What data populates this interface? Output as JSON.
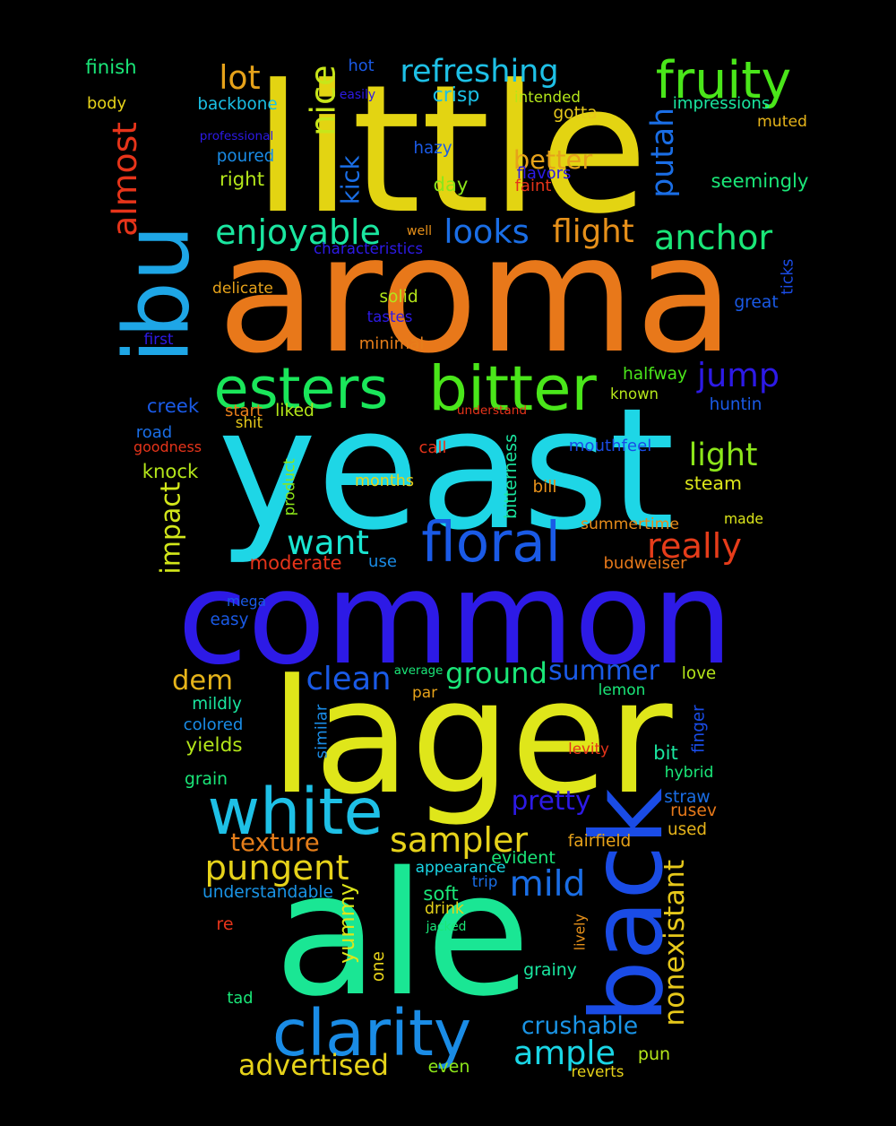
{
  "word_cloud": {
    "background": "#000000",
    "words": [
      {
        "text": "little",
        "color": "#e3d412"
      },
      {
        "text": "aroma",
        "color": "#e8781a"
      },
      {
        "text": "yeast",
        "color": "#1ed6e6"
      },
      {
        "text": "common",
        "color": "#2d1ae6"
      },
      {
        "text": "lager",
        "color": "#dfe61a"
      },
      {
        "text": "ale",
        "color": "#1ae694"
      },
      {
        "text": "ibu",
        "color": "#1ea6e6"
      },
      {
        "text": "back",
        "color": "#1a4ce6"
      },
      {
        "text": "esters",
        "color": "#1ae65a"
      },
      {
        "text": "bitter",
        "color": "#4ae61a"
      },
      {
        "text": "floral",
        "color": "#1a5ae6"
      },
      {
        "text": "white",
        "color": "#1ec0e6"
      },
      {
        "text": "clarity",
        "color": "#1a8ce6"
      },
      {
        "text": "fruity",
        "color": "#4ae61a"
      },
      {
        "text": "refreshing",
        "color": "#1ec0e6"
      },
      {
        "text": "lot",
        "color": "#e6a21a"
      },
      {
        "text": "nice",
        "color": "#c8e61a"
      },
      {
        "text": "almost",
        "color": "#e6341a"
      },
      {
        "text": "putah",
        "color": "#1a6ee6"
      },
      {
        "text": "enjoyable",
        "color": "#1ae6a0"
      },
      {
        "text": "looks",
        "color": "#1a6ee6"
      },
      {
        "text": "flight",
        "color": "#e6901a"
      },
      {
        "text": "anchor",
        "color": "#1ae678"
      },
      {
        "text": "kick",
        "color": "#1a6ee6"
      },
      {
        "text": "better",
        "color": "#e6a21a"
      },
      {
        "text": "right",
        "color": "#b4e61a"
      },
      {
        "text": "jump",
        "color": "#2d1ae6"
      },
      {
        "text": "light",
        "color": "#8ce61a"
      },
      {
        "text": "want",
        "color": "#1ae6d2"
      },
      {
        "text": "really",
        "color": "#e63c1a"
      },
      {
        "text": "impact",
        "color": "#d2e61a"
      },
      {
        "text": "dem",
        "color": "#e6b41a"
      },
      {
        "text": "clean",
        "color": "#1a5ae6"
      },
      {
        "text": "ground",
        "color": "#1ae678"
      },
      {
        "text": "summer",
        "color": "#1a5ae6"
      },
      {
        "text": "sampler",
        "color": "#e6d21a"
      },
      {
        "text": "pungent",
        "color": "#e6d21a"
      },
      {
        "text": "texture",
        "color": "#e67e1a"
      },
      {
        "text": "mild",
        "color": "#1a6ee6"
      },
      {
        "text": "pretty",
        "color": "#2d1ae6"
      },
      {
        "text": "nonexistant",
        "color": "#e6c81a"
      },
      {
        "text": "yummy",
        "color": "#dce61a"
      },
      {
        "text": "ample",
        "color": "#1ad6e6"
      },
      {
        "text": "crushable",
        "color": "#1a94e6"
      },
      {
        "text": "advertised",
        "color": "#e6d21a"
      },
      {
        "text": "finish",
        "color": "#1ae678"
      },
      {
        "text": "body",
        "color": "#e6d21a"
      },
      {
        "text": "backbone",
        "color": "#1ac0e6"
      },
      {
        "text": "professional",
        "color": "#2d1ae6"
      },
      {
        "text": "poured",
        "color": "#1a8ce6"
      },
      {
        "text": "hot",
        "color": "#1a5ae6"
      },
      {
        "text": "easily",
        "color": "#2d1ae6"
      },
      {
        "text": "crisp",
        "color": "#1ac0e6"
      },
      {
        "text": "intended",
        "color": "#b4e61a"
      },
      {
        "text": "gotta",
        "color": "#e6c81a"
      },
      {
        "text": "impressions",
        "color": "#1ae6a0"
      },
      {
        "text": "muted",
        "color": "#e6b41a"
      },
      {
        "text": "hazy",
        "color": "#1a5ae6"
      },
      {
        "text": "flavors",
        "color": "#2d1ae6"
      },
      {
        "text": "faint",
        "color": "#e6341a"
      },
      {
        "text": "day",
        "color": "#8ce61a"
      },
      {
        "text": "seemingly",
        "color": "#1ae678"
      },
      {
        "text": "well",
        "color": "#e6901a"
      },
      {
        "text": "characteristics",
        "color": "#2d1ae6"
      },
      {
        "text": "ticks",
        "color": "#1a4ce6"
      },
      {
        "text": "delicate",
        "color": "#e6a21a"
      },
      {
        "text": "solid",
        "color": "#b4e61a"
      },
      {
        "text": "tastes",
        "color": "#2d1ae6"
      },
      {
        "text": "great",
        "color": "#1a5ae6"
      },
      {
        "text": "first",
        "color": "#2d1ae6"
      },
      {
        "text": "minimal",
        "color": "#e67e1a"
      },
      {
        "text": "halfway",
        "color": "#4ae61a"
      },
      {
        "text": "known",
        "color": "#b4e61a"
      },
      {
        "text": "creek",
        "color": "#1a5ae6"
      },
      {
        "text": "start",
        "color": "#e67e1a"
      },
      {
        "text": "liked",
        "color": "#b4e61a"
      },
      {
        "text": "shit",
        "color": "#e6c81a"
      },
      {
        "text": "understand",
        "color": "#e6341a"
      },
      {
        "text": "huntin",
        "color": "#1a5ae6"
      },
      {
        "text": "road",
        "color": "#1a6ee6"
      },
      {
        "text": "goodness",
        "color": "#e6341a"
      },
      {
        "text": "call",
        "color": "#e6341a"
      },
      {
        "text": "mouthfeel",
        "color": "#1a4ce6"
      },
      {
        "text": "bitterness",
        "color": "#1ae6a0"
      },
      {
        "text": "knock",
        "color": "#b4e61a"
      },
      {
        "text": "product",
        "color": "#8ce61a"
      },
      {
        "text": "months",
        "color": "#e6d21a"
      },
      {
        "text": "bill",
        "color": "#e6901a"
      },
      {
        "text": "steam",
        "color": "#dce61a"
      },
      {
        "text": "summertime",
        "color": "#e68c1a"
      },
      {
        "text": "made",
        "color": "#dce61a"
      },
      {
        "text": "moderate",
        "color": "#e6341a"
      },
      {
        "text": "use",
        "color": "#1a8ce6"
      },
      {
        "text": "budweiser",
        "color": "#e6781a"
      },
      {
        "text": "mega",
        "color": "#1a5ae6"
      },
      {
        "text": "easy",
        "color": "#1a5ae6"
      },
      {
        "text": "average",
        "color": "#1ae678"
      },
      {
        "text": "par",
        "color": "#e6a21a"
      },
      {
        "text": "lemon",
        "color": "#1ae678"
      },
      {
        "text": "love",
        "color": "#b4e61a"
      },
      {
        "text": "mildly",
        "color": "#1ae6a0"
      },
      {
        "text": "colored",
        "color": "#1a8ce6"
      },
      {
        "text": "similar",
        "color": "#1a8ce6"
      },
      {
        "text": "finger",
        "color": "#1a4ce6"
      },
      {
        "text": "yields",
        "color": "#b4e61a"
      },
      {
        "text": "levity",
        "color": "#e6341a"
      },
      {
        "text": "bit",
        "color": "#1ae6a0"
      },
      {
        "text": "grain",
        "color": "#1ae678"
      },
      {
        "text": "hybrid",
        "color": "#1ae678"
      },
      {
        "text": "straw",
        "color": "#1a6ee6"
      },
      {
        "text": "rusev",
        "color": "#e6781a"
      },
      {
        "text": "used",
        "color": "#e6b41a"
      },
      {
        "text": "fairfield",
        "color": "#e6a21a"
      },
      {
        "text": "evident",
        "color": "#1ae678"
      },
      {
        "text": "appearance",
        "color": "#1ad6e6"
      },
      {
        "text": "trip",
        "color": "#1a6ee6"
      },
      {
        "text": "understandable",
        "color": "#1a94e6"
      },
      {
        "text": "soft",
        "color": "#1ae678"
      },
      {
        "text": "drink",
        "color": "#e6d21a"
      },
      {
        "text": "jacked",
        "color": "#1ae678"
      },
      {
        "text": "re",
        "color": "#e6341a"
      },
      {
        "text": "lively",
        "color": "#e6901a"
      },
      {
        "text": "one",
        "color": "#e6d21a"
      },
      {
        "text": "grainy",
        "color": "#1ae6a0"
      },
      {
        "text": "tad",
        "color": "#1ae678"
      },
      {
        "text": "pun",
        "color": "#b4e61a"
      },
      {
        "text": "even",
        "color": "#8ce61a"
      },
      {
        "text": "reverts",
        "color": "#e6d21a"
      }
    ]
  }
}
